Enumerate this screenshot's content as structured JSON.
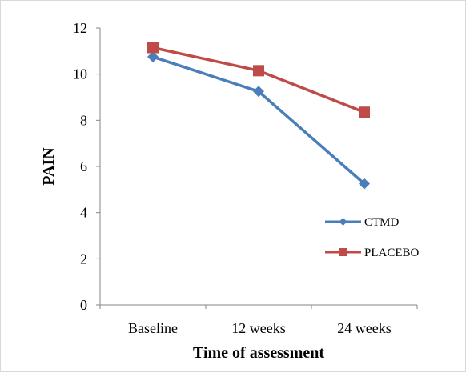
{
  "chart_data": {
    "type": "line",
    "title": "",
    "xlabel": "Time of assessment",
    "ylabel": "PAIN",
    "categories": [
      "Baseline",
      "12 weeks",
      "24 weeks"
    ],
    "ylim": [
      0,
      12
    ],
    "yticks": [
      "0",
      "2",
      "4",
      "6",
      "8",
      "10",
      "12"
    ],
    "grid": false,
    "legend_position": "right",
    "series": [
      {
        "name": "CTMD",
        "values": [
          10.75,
          9.25,
          5.25
        ],
        "color": "#4a7ebb",
        "marker": "diamond"
      },
      {
        "name": "PLACEBO",
        "values": [
          11.15,
          10.15,
          8.35
        ],
        "color": "#be4b48",
        "marker": "square"
      }
    ]
  }
}
